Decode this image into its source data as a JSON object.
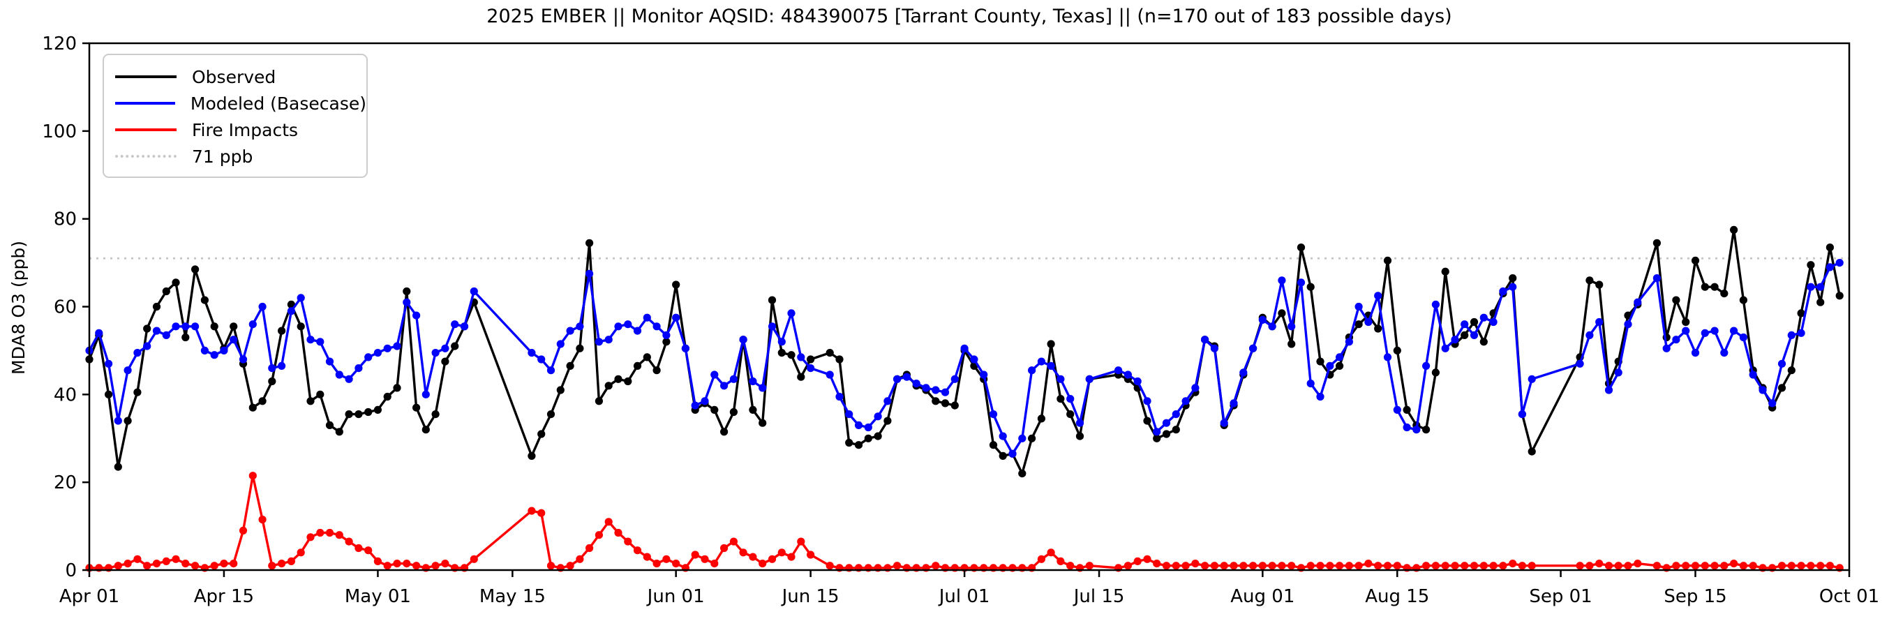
{
  "chart_data": {
    "type": "line",
    "title": "2025 EMBER || Monitor AQSID: 484390075 [Tarrant County, Texas] || (n=170 out of 183 possible days)",
    "ylabel": "MDA8 O3 (ppb)",
    "ylim": [
      0,
      120
    ],
    "y_ticks": [
      0,
      20,
      40,
      60,
      80,
      100,
      120
    ],
    "x_ticks": [
      {
        "label": "Apr 01",
        "day": 0
      },
      {
        "label": "Apr 15",
        "day": 14
      },
      {
        "label": "May 01",
        "day": 30
      },
      {
        "label": "May 15",
        "day": 44
      },
      {
        "label": "Jun 01",
        "day": 61
      },
      {
        "label": "Jun 15",
        "day": 75
      },
      {
        "label": "Jul 01",
        "day": 91
      },
      {
        "label": "Jul 15",
        "day": 105
      },
      {
        "label": "Aug 01",
        "day": 122
      },
      {
        "label": "Aug 15",
        "day": 136
      },
      {
        "label": "Sep 01",
        "day": 153
      },
      {
        "label": "Sep 15",
        "day": 167
      },
      {
        "label": "Oct 01",
        "day": 183
      }
    ],
    "date_start": "Apr 01",
    "date_end": "Sep 30",
    "days_total": 183,
    "n_days_observed": 170,
    "n_possible_days": 183,
    "ref_line": {
      "label": "71 ppb",
      "value": 71,
      "color": "#c9c9c9"
    },
    "legend": [
      {
        "label": "Observed",
        "color": "#000000",
        "style": "solid"
      },
      {
        "label": "Modeled (Basecase)",
        "color": "#0000ff",
        "style": "solid"
      },
      {
        "label": "Fire Impacts",
        "color": "#ff0000",
        "style": "solid"
      },
      {
        "label": "71 ppb",
        "color": "#c9c9c9",
        "style": "dotted"
      }
    ],
    "series": [
      {
        "name": "Observed",
        "color": "#000000",
        "values": [
          48,
          53.5,
          40,
          23.5,
          34,
          40.5,
          55,
          60,
          63.5,
          65.5,
          53,
          68.5,
          61.5,
          55.5,
          50.5,
          55.5,
          47,
          37,
          38.5,
          43,
          54.5,
          60.5,
          55.5,
          38.5,
          40,
          33,
          31.5,
          35.5,
          35.5,
          36,
          36.5,
          39.5,
          41.5,
          63.5,
          37,
          32,
          35.5,
          47.5,
          51,
          55.5,
          61,
          null,
          null,
          null,
          null,
          null,
          26,
          31,
          35.5,
          41,
          46.5,
          50.5,
          74.5,
          38.5,
          42,
          43.5,
          43,
          46.5,
          48.5,
          45.5,
          52,
          65,
          50.5,
          36.5,
          38,
          36.5,
          31.5,
          36,
          52.5,
          36.5,
          33.5,
          61.5,
          49.5,
          49,
          44,
          48,
          null,
          49.5,
          48,
          29,
          28.5,
          30,
          30.5,
          34,
          43.5,
          44.5,
          42,
          41,
          38.5,
          38,
          37.5,
          50,
          46.5,
          43.5,
          28.5,
          26,
          26.5,
          22,
          30,
          34.5,
          51.5,
          39,
          35.5,
          30.5,
          43.5,
          null,
          null,
          44.5,
          43.5,
          41.5,
          34,
          30,
          31,
          32,
          37.5,
          40.5,
          52.5,
          51,
          33,
          37.5,
          44.5,
          50.5,
          57.5,
          55.5,
          58.5,
          51.5,
          73.5,
          64.5,
          47.5,
          44.5,
          46.5,
          53,
          56,
          58,
          55,
          70.5,
          50,
          36.5,
          33,
          32,
          45,
          68,
          51.5,
          53.5,
          56.5,
          52,
          58.5,
          63,
          66.5,
          35.5,
          27,
          null,
          null,
          null,
          null,
          48.5,
          66,
          65,
          42.5,
          47.5,
          58,
          60.5,
          null,
          74.5,
          53,
          61.5,
          56.5,
          70.5,
          64.5,
          64.5,
          63,
          77.5,
          61.5,
          45.5,
          41.5,
          37,
          41.5,
          45.5,
          58.5,
          69.5,
          61,
          73.5,
          62.5
        ]
      },
      {
        "name": "Modeled (Basecase)",
        "color": "#0000ff",
        "values": [
          50,
          54,
          47,
          34,
          45.5,
          49.5,
          51,
          54.5,
          53.5,
          55.5,
          55.5,
          55.5,
          50,
          49,
          50,
          52.5,
          48,
          56,
          60,
          46,
          46.5,
          59,
          62,
          52.5,
          52,
          47.5,
          44.5,
          43.5,
          46,
          48.5,
          49.5,
          50.5,
          51,
          61,
          58,
          40,
          49.5,
          50.5,
          56,
          55.5,
          63.5,
          null,
          null,
          null,
          null,
          null,
          49.5,
          48,
          45.5,
          51.5,
          54.5,
          55.5,
          67.5,
          52,
          52.5,
          55.5,
          56,
          54.5,
          57.5,
          55.5,
          53.5,
          57.5,
          50.5,
          37.5,
          38.5,
          44.5,
          42,
          43.5,
          52.5,
          43,
          41.5,
          55.5,
          52,
          58.5,
          48.5,
          46,
          null,
          44.5,
          39.5,
          35.5,
          33,
          32.5,
          35,
          38.5,
          43.5,
          44,
          42.5,
          41.5,
          41,
          40.5,
          43.5,
          50.5,
          48,
          44.5,
          35.5,
          30.5,
          26.5,
          30,
          45.5,
          47.5,
          46.5,
          43.5,
          39,
          33.5,
          43.5,
          null,
          null,
          45.5,
          44.5,
          43,
          38.5,
          31.5,
          33.5,
          35.5,
          38.5,
          41.5,
          52.5,
          50.5,
          33.5,
          38,
          45,
          50.5,
          57,
          55.5,
          66,
          55.5,
          65.5,
          42.5,
          39.5,
          46.5,
          48.5,
          52,
          60,
          56.5,
          62.5,
          48.5,
          36.5,
          32.5,
          32,
          46.5,
          60.5,
          50.5,
          52.5,
          56,
          53.5,
          57.5,
          56.5,
          63.5,
          64.5,
          35.5,
          43.5,
          null,
          null,
          null,
          null,
          47,
          53.5,
          56.5,
          41,
          45,
          56,
          61,
          null,
          66.5,
          50.5,
          52.5,
          54.5,
          49.5,
          54,
          54.5,
          49.5,
          54.5,
          53,
          44.5,
          41,
          38,
          47,
          53.5,
          54,
          64.5,
          64.5,
          69,
          70
        ]
      },
      {
        "name": "Fire Impacts",
        "color": "#ff0000",
        "values": [
          0.5,
          0.5,
          0.5,
          1,
          1.5,
          2.5,
          1,
          1.5,
          2,
          2.5,
          1.5,
          1,
          0.5,
          1,
          1.5,
          1.5,
          9,
          21.5,
          11.5,
          1,
          1.5,
          2,
          4,
          7.5,
          8.5,
          8.5,
          8,
          6.5,
          5,
          4.5,
          2,
          1,
          1.5,
          1.5,
          1,
          0.5,
          1,
          1.5,
          0.5,
          0.5,
          2.5,
          null,
          null,
          null,
          null,
          null,
          13.5,
          13,
          1,
          0.5,
          1,
          2.5,
          5,
          8,
          11,
          8.5,
          6.5,
          4.5,
          3,
          1.5,
          2.5,
          1.5,
          0.5,
          3.5,
          2.5,
          1.5,
          5,
          6.5,
          4,
          3,
          1.5,
          2.5,
          4,
          3,
          6.5,
          3.5,
          null,
          1,
          0.5,
          0.5,
          0.5,
          0.5,
          0.5,
          0.5,
          1,
          0.5,
          0.5,
          0.5,
          1,
          0.5,
          0.5,
          0.5,
          0.5,
          0.5,
          0.5,
          0.5,
          0.5,
          0.5,
          0.5,
          2.5,
          4,
          2,
          1,
          0.5,
          1,
          null,
          null,
          0.5,
          1,
          2,
          2.5,
          1.5,
          1,
          1,
          1,
          1.5,
          1,
          1,
          1,
          1,
          1,
          1,
          1,
          1,
          1,
          1,
          0.5,
          1,
          1,
          1,
          1,
          1,
          1,
          1.5,
          1,
          1,
          1,
          0.5,
          0.5,
          1,
          1,
          1,
          1,
          1,
          1,
          1,
          1,
          1,
          1.5,
          1,
          1,
          null,
          null,
          null,
          null,
          1,
          1,
          1.5,
          1,
          1,
          1,
          1.5,
          null,
          1,
          0.5,
          1,
          1,
          1,
          1,
          1,
          1,
          1.5,
          1,
          1,
          0.5,
          0.5,
          1,
          1,
          1,
          1,
          1,
          1,
          0.5
        ]
      }
    ],
    "layout": {
      "plot_left": 128,
      "plot_right": 2650,
      "plot_top": 62,
      "plot_bottom": 817,
      "background": "#ffffff",
      "grid": false,
      "legend_position": "upper left"
    }
  }
}
